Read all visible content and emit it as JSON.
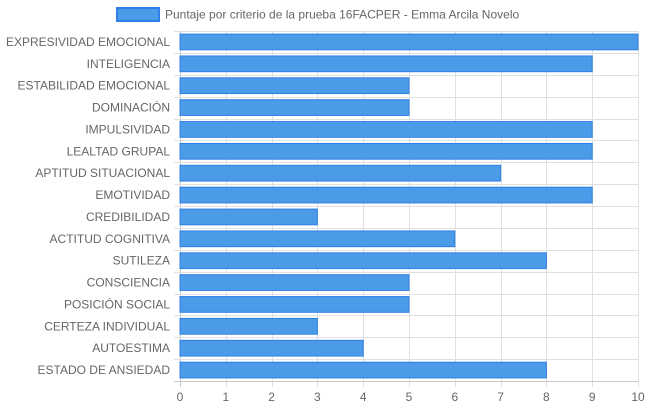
{
  "chart_data": {
    "type": "bar",
    "orientation": "horizontal",
    "legend": {
      "position": "top",
      "label": "Puntaje por criterio de la prueba 16FACPER - Emma Arcila Novelo"
    },
    "categories": [
      "EXPRESIVIDAD EMOCIONAL",
      "INTELIGENCIA",
      "ESTABILIDAD EMOCIONAL",
      "DOMINACIÓN",
      "IMPULSIVIDAD",
      "LEALTAD GRUPAL",
      "APTITUD SITUACIONAL",
      "EMOTIVIDAD",
      "CREDIBILIDAD",
      "ACTITUD COGNITIVA",
      "SUTILEZA",
      "CONSCIENCIA",
      "POSICIÓN SOCIAL",
      "CERTEZA INDIVIDUAL",
      "AUTOESTIMA",
      "ESTADO DE ANSIEDAD"
    ],
    "series": [
      {
        "name": "Puntaje por criterio de la prueba 16FACPER - Emma Arcila Novelo",
        "values": [
          10,
          9,
          5,
          5,
          9,
          9,
          7,
          9,
          3,
          6,
          8,
          5,
          5,
          3,
          4,
          8
        ]
      }
    ],
    "xlim": [
      0,
      10
    ],
    "xticks": [
      "0",
      "1",
      "2",
      "3",
      "4",
      "5",
      "6",
      "7",
      "8",
      "9",
      "10"
    ],
    "grid": true,
    "colors": {
      "bar_fill": "#4b9be8",
      "bar_border": "#2f80e6",
      "grid": "#e0e0e0",
      "text": "#666666"
    }
  }
}
